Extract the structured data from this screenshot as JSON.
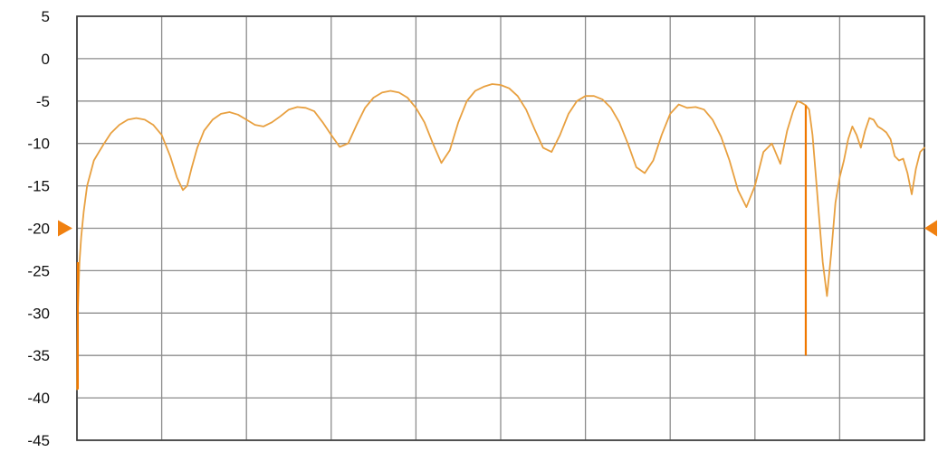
{
  "chart_data": {
    "type": "line",
    "title": "",
    "xlabel": "",
    "ylabel": "",
    "ylim": [
      -45,
      5
    ],
    "xlim": [
      0,
      100
    ],
    "y_ticks": [
      "5",
      "0",
      "-5",
      "-10",
      "-15",
      "-20",
      "-25",
      "-30",
      "-35",
      "-40",
      "-45"
    ],
    "x_gridlines": 10,
    "grid": true,
    "reference_level": -20,
    "reference_marker_color": "#f08010",
    "series": [
      {
        "color": "#e8a040",
        "spike_color": "#f07800",
        "x": [
          0.0,
          0.1,
          0.3,
          0.5,
          0.8,
          1.2,
          1.6,
          2.0,
          2.6,
          3.2,
          4.0,
          5.0,
          6.0,
          7.0,
          8.0,
          9.0,
          10.0,
          11.0,
          11.8,
          12.5,
          13.0,
          13.5,
          14.2,
          15.0,
          16.0,
          17.0,
          18.0,
          19.0,
          20.0,
          21.0,
          22.0,
          23.0,
          24.0,
          25.0,
          26.0,
          27.0,
          28.0,
          29.0,
          30.0,
          31.0,
          32.0,
          33.0,
          34.0,
          35.0,
          36.0,
          37.0,
          38.0,
          39.0,
          40.0,
          41.0,
          42.0,
          43.0,
          44.0,
          45.0,
          46.0,
          47.0,
          48.0,
          49.0,
          50.0,
          51.0,
          52.0,
          53.0,
          54.0,
          55.0,
          56.0,
          57.0,
          58.0,
          59.0,
          60.0,
          61.0,
          62.0,
          63.0,
          64.0,
          65.0,
          66.0,
          67.0,
          68.0,
          69.0,
          70.0,
          71.0,
          72.0,
          73.0,
          74.0,
          75.0,
          76.0,
          77.0,
          78.0,
          79.0,
          80.0,
          81.0,
          82.0,
          83.0,
          83.8,
          84.5,
          85.0,
          85.5,
          86.0,
          86.4,
          86.8,
          87.2,
          87.6,
          88.0,
          88.5,
          89.0,
          89.5,
          90.0,
          90.5,
          91.0,
          91.5,
          92.0,
          92.5,
          93.0,
          93.5,
          94.0,
          94.5,
          95.0,
          95.5,
          96.0,
          96.5,
          97.0,
          97.5,
          98.0,
          98.5,
          99.0,
          99.5,
          100.0
        ],
        "y": [
          -39,
          -30,
          -24,
          -21,
          -18,
          -15,
          -13.5,
          -12,
          -11,
          -10,
          -8.8,
          -7.8,
          -7.2,
          -7,
          -7.2,
          -7.8,
          -9,
          -11.5,
          -14,
          -15.5,
          -15,
          -13,
          -10.5,
          -8.5,
          -7.2,
          -6.5,
          -6.3,
          -6.6,
          -7.2,
          -7.8,
          -8,
          -7.5,
          -6.8,
          -6,
          -5.7,
          -5.8,
          -6.2,
          -7.5,
          -9,
          -10.4,
          -10,
          -7.8,
          -5.8,
          -4.6,
          -4,
          -3.8,
          -4,
          -4.6,
          -5.8,
          -7.5,
          -10,
          -12.3,
          -10.8,
          -7.5,
          -5,
          -3.8,
          -3.3,
          -3,
          -3.1,
          -3.5,
          -4.4,
          -6,
          -8.3,
          -10.5,
          -11,
          -9,
          -6.5,
          -5,
          -4.4,
          -4.4,
          -4.8,
          -5.8,
          -7.5,
          -10,
          -12.8,
          -13.5,
          -12,
          -9,
          -6.5,
          -5.4,
          -5.8,
          -5.7,
          -6,
          -7.2,
          -9.2,
          -12,
          -15.5,
          -17.5,
          -15,
          -11,
          -10,
          -12.4,
          -8.5,
          -6.2,
          -5,
          -5.2,
          -5.5,
          -6,
          -9,
          -14,
          -19,
          -24,
          -28,
          -23,
          -17,
          -14,
          -12,
          -9.5,
          -8,
          -9,
          -10.5,
          -8.5,
          -7,
          -7.2,
          -8,
          -8.3,
          -8.7,
          -9.5,
          -11.5,
          -12,
          -11.8,
          -13.5,
          -16,
          -13,
          -11,
          -10.5
        ],
        "spikes": [
          {
            "x": 0.1,
            "y": -39
          },
          {
            "x": 86.0,
            "y": -35
          }
        ]
      }
    ]
  }
}
